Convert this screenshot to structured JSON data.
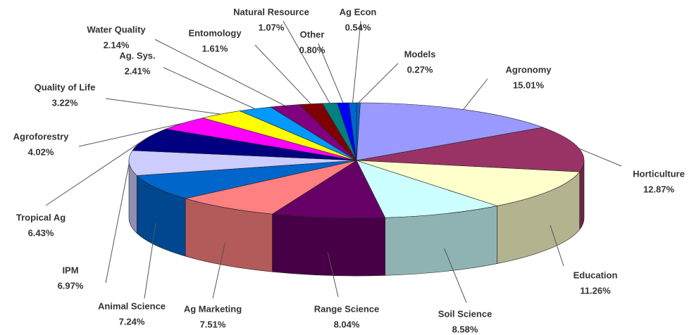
{
  "chart_data": {
    "type": "pie3d",
    "categories": [
      "Models",
      "Agronomy",
      "Horticulture",
      "Education",
      "Soil Science",
      "Range Science",
      "Ag Marketing",
      "Animal Science",
      "IPM",
      "Tropical Ag",
      "Agroforestry",
      "Quality of Life",
      "Ag. Sys.",
      "Water Quality",
      "Entomology",
      "Natural Resource",
      "Other",
      "Ag Econ"
    ],
    "values": [
      0.27,
      15.01,
      12.87,
      11.26,
      8.58,
      8.04,
      7.51,
      7.24,
      6.97,
      6.43,
      4.02,
      3.22,
      2.41,
      2.14,
      1.61,
      1.07,
      0.8,
      0.54
    ],
    "value_labels": [
      "0.27%",
      "15.01%",
      "12.87%",
      "11.26%",
      "8.58%",
      "8.04%",
      "7.51%",
      "7.24%",
      "6.97%",
      "6.43%",
      "4.02%",
      "3.22%",
      "2.41%",
      "2.14%",
      "1.61%",
      "1.07%",
      "0.80%",
      "0.54%"
    ],
    "colors": [
      "#0066cc",
      "#9999ff",
      "#993366",
      "#ffffcc",
      "#ccffff",
      "#660066",
      "#ff8080",
      "#0066cc",
      "#ccccff",
      "#000080",
      "#ff00ff",
      "#ffff00",
      "#0099ff",
      "#800080",
      "#800000",
      "#008080",
      "#0000ff",
      "#0066cc"
    ]
  }
}
